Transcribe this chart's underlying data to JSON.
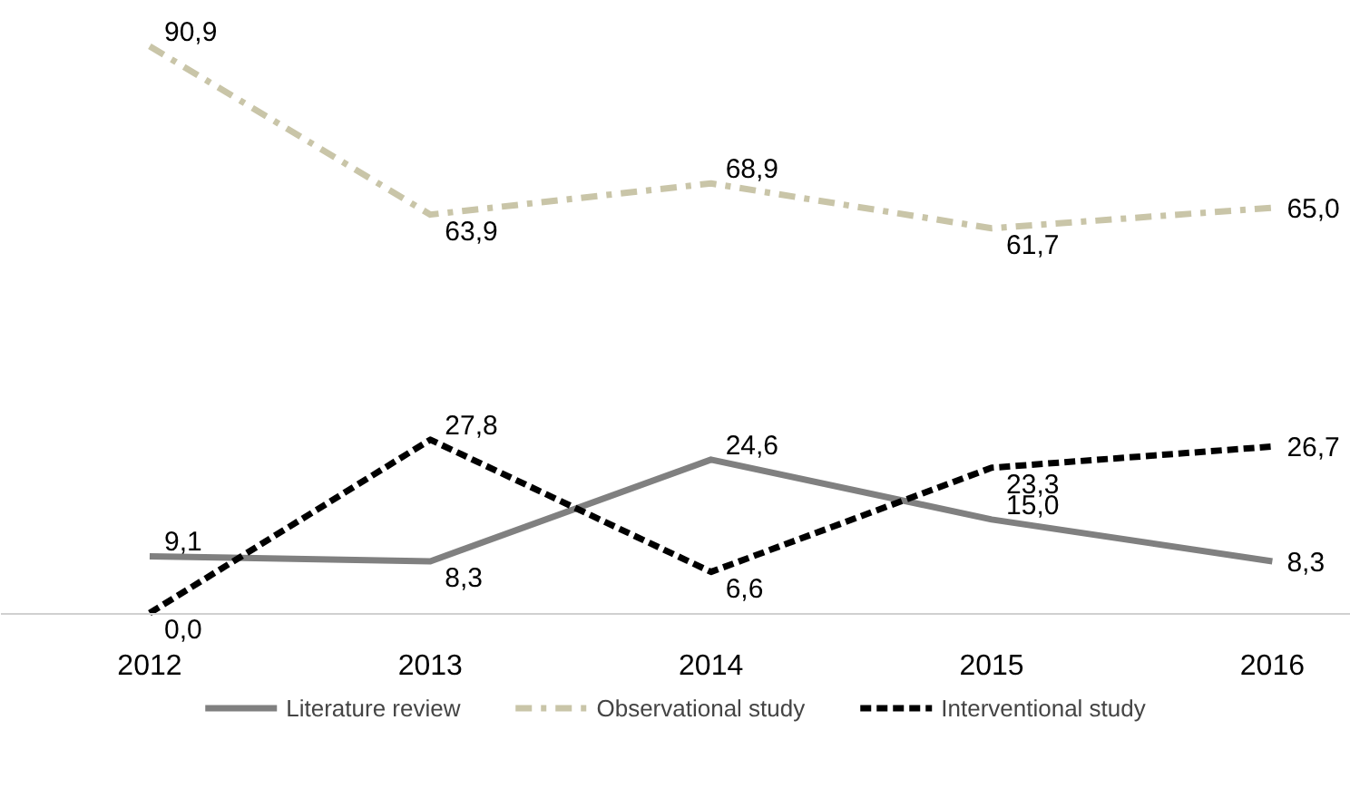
{
  "chart_data": {
    "type": "line",
    "categories": [
      "2012",
      "2013",
      "2014",
      "2015",
      "2016"
    ],
    "series": [
      {
        "name": "Literature review",
        "color": "#808080",
        "line_style": "solid",
        "values": [
          9.1,
          8.3,
          24.6,
          15.0,
          8.3
        ],
        "value_labels": [
          "9,1",
          "8,3",
          "24,6",
          "15,0",
          "8,3"
        ]
      },
      {
        "name": "Observational study",
        "color": "#c9c5a8",
        "line_style": "dashdot",
        "values": [
          90.9,
          63.9,
          68.9,
          61.7,
          65.0
        ],
        "value_labels": [
          "90,9",
          "63,9",
          "68,9",
          "61,7",
          "65,0"
        ]
      },
      {
        "name": "Interventional study",
        "color": "#000000",
        "line_style": "dashed",
        "values": [
          0.0,
          27.8,
          6.6,
          23.3,
          26.7
        ],
        "value_labels": [
          "0,0",
          "27,8",
          "6,6",
          "23,3",
          "26,7"
        ]
      }
    ],
    "legend": "bottom"
  }
}
